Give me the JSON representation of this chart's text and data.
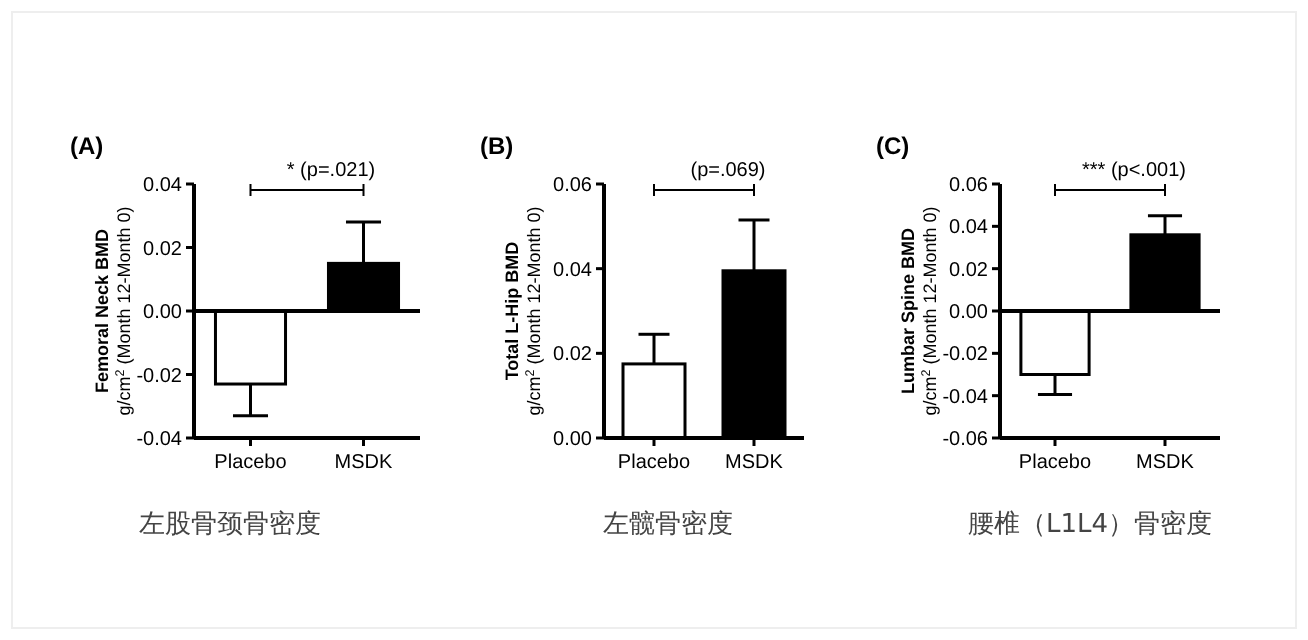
{
  "chart_data": [
    {
      "type": "bar",
      "title": "(A)",
      "ylabel": "Femoral Neck BMD\ng/cm$^{2}$ (Month 12-Month 0)",
      "categories": [
        "Placebo",
        "MSDK"
      ],
      "values": [
        -0.023,
        0.015
      ],
      "colors": [
        "#ffffff",
        "#000000"
      ],
      "errors": [
        [
          -0.033,
          -0.023
        ],
        [
          0.015,
          0.028
        ]
      ],
      "ylim": [
        -0.04,
        0.04
      ],
      "yticks": [
        {
          "value": -0.04,
          "label": "-0.04"
        },
        {
          "value": -0.02,
          "label": "-0.02"
        },
        {
          "value": 0,
          "label": "0.00"
        },
        0.02,
        0.04
      ],
      "annotations": [
        "* (p=.021)",
        "左股骨颈骨密度"
      ]
    },
    {
      "type": "bar",
      "title": "(B)",
      "ylabel": "Total L-Hip BMD\ng/cm$^{2}$ (Month 12-Month 0)",
      "categories": [
        "Placebo",
        "MSDK"
      ],
      "values": [
        0.0175,
        0.0395
      ],
      "colors": [
        "#ffffff",
        "#000000"
      ],
      "errors": [
        [
          0.0175,
          0.0245
        ],
        [
          0.0395,
          0.0515
        ]
      ],
      "ylim": [
        0,
        0.06
      ],
      "yticks": [
        {
          "value": 0,
          "label": "0.00"
        },
        0.02,
        0.04,
        0.06
      ],
      "annotations": [
        "(p=.069)",
        "左髋骨密度"
      ]
    },
    {
      "type": "bar",
      "title": "(C)",
      "ylabel": "Lumbar Spine BMD\ng/cm$^{2}$ (Month 12-Month 0)",
      "categories": [
        "Placebo",
        "MSDK"
      ],
      "values": [
        -0.03,
        0.036
      ],
      "colors": [
        "#ffffff",
        "#000000"
      ],
      "errors": [
        [
          -0.0395,
          -0.03
        ],
        [
          0.036,
          0.045
        ]
      ],
      "ylim": [
        -0.06,
        0.06
      ],
      "yticks": [
        {
          "value": -0.06,
          "label": "-0.06"
        },
        {
          "value": -0.04,
          "label": "-0.04"
        },
        {
          "value": -0.02,
          "label": "-0.02"
        },
        {
          "value": 0,
          "label": "0.00"
        },
        0.02,
        0.04,
        0.06
      ],
      "annotations": [
        "*** (p<.001)",
        "腰椎（L1L4）骨密度"
      ]
    }
  ]
}
